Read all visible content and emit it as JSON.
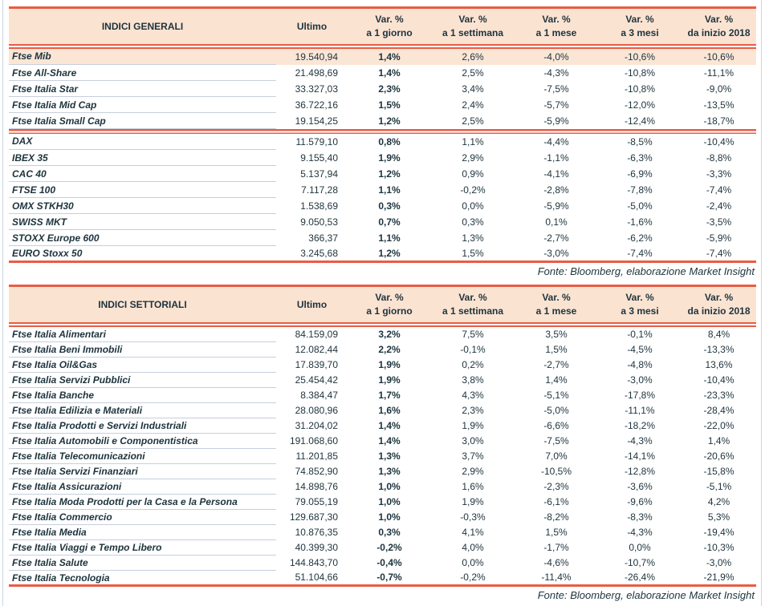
{
  "colors": {
    "accent_red": "#E95C44",
    "header_bg": "#FBE3D2",
    "highlight_row_bg": "#FBE6D6",
    "text_dark": "#1D333D",
    "row_divider": "#C6CFDC",
    "frame_border": "#C9D6E4"
  },
  "columns": {
    "ultimo": "Ultimo",
    "var": [
      {
        "top": "Var. %",
        "bottom": "a 1 giorno"
      },
      {
        "top": "Var. %",
        "bottom": "a 1 settimana"
      },
      {
        "top": "Var. %",
        "bottom": "a 1 mese"
      },
      {
        "top": "Var. %",
        "bottom": "a 3 mesi"
      },
      {
        "top": "Var. %",
        "bottom": "da inizio 2018"
      }
    ]
  },
  "tables": [
    {
      "title": "INDICI GENERALI",
      "source_note": "Fonte: Bloomberg, elaborazione Market Insight",
      "rows": [
        {
          "name": "Ftse Mib",
          "ultimo": "19.540,94",
          "values": [
            "1,4%",
            "2,6%",
            "-4,0%",
            "-10,6%",
            "-10,6%"
          ],
          "highlight": true
        },
        {
          "name": "Ftse All-Share",
          "ultimo": "21.498,69",
          "values": [
            "1,4%",
            "2,5%",
            "-4,3%",
            "-10,8%",
            "-11,1%"
          ]
        },
        {
          "name": "Ftse Italia Star",
          "ultimo": "33.327,03",
          "values": [
            "2,3%",
            "3,4%",
            "-7,5%",
            "-10,8%",
            "-9,0%"
          ]
        },
        {
          "name": "Ftse Italia Mid Cap",
          "ultimo": "36.722,16",
          "values": [
            "1,5%",
            "2,4%",
            "-5,7%",
            "-12,0%",
            "-13,5%"
          ]
        },
        {
          "name": "Ftse Italia Small Cap",
          "ultimo": "19.154,25",
          "values": [
            "1,2%",
            "2,5%",
            "-5,9%",
            "-12,4%",
            "-18,7%"
          ],
          "separator_after": true
        },
        {
          "name": "DAX",
          "ultimo": "11.579,10",
          "values": [
            "0,8%",
            "1,1%",
            "-4,4%",
            "-8,5%",
            "-10,4%"
          ]
        },
        {
          "name": "IBEX 35",
          "ultimo": "9.155,40",
          "values": [
            "1,9%",
            "2,9%",
            "-1,1%",
            "-6,3%",
            "-8,8%"
          ]
        },
        {
          "name": "CAC 40",
          "ultimo": "5.137,94",
          "values": [
            "1,2%",
            "0,9%",
            "-4,1%",
            "-6,9%",
            "-3,3%"
          ]
        },
        {
          "name": "FTSE 100",
          "ultimo": "7.117,28",
          "values": [
            "1,1%",
            "-0,2%",
            "-2,8%",
            "-7,8%",
            "-7,4%"
          ]
        },
        {
          "name": "OMX STKH30",
          "ultimo": "1.538,69",
          "values": [
            "0,3%",
            "0,0%",
            "-5,9%",
            "-5,0%",
            "-2,4%"
          ]
        },
        {
          "name": "SWISS MKT",
          "ultimo": "9.050,53",
          "values": [
            "0,7%",
            "0,3%",
            "0,1%",
            "-1,6%",
            "-3,5%"
          ]
        },
        {
          "name": "STOXX Europe 600",
          "ultimo": "366,37",
          "values": [
            "1,1%",
            "1,3%",
            "-2,7%",
            "-6,2%",
            "-5,9%"
          ]
        },
        {
          "name": "EURO Stoxx 50",
          "ultimo": "3.245,68",
          "values": [
            "1,2%",
            "1,5%",
            "-3,0%",
            "-7,4%",
            "-7,4%"
          ]
        }
      ]
    },
    {
      "title": "INDICI SETTORIALI",
      "source_note": "Fonte: Bloomberg, elaborazione Market Insight",
      "rows": [
        {
          "name": "Ftse Italia Alimentari",
          "ultimo": "84.159,09",
          "values": [
            "3,2%",
            "7,5%",
            "3,5%",
            "-0,1%",
            "8,4%"
          ]
        },
        {
          "name": "Ftse Italia Beni Immobili",
          "ultimo": "12.082,44",
          "values": [
            "2,2%",
            "-0,1%",
            "1,5%",
            "-4,5%",
            "-13,3%"
          ]
        },
        {
          "name": "Ftse Italia Oil&Gas",
          "ultimo": "17.839,70",
          "values": [
            "1,9%",
            "0,2%",
            "-2,7%",
            "-4,8%",
            "13,6%"
          ]
        },
        {
          "name": "Ftse Italia Servizi Pubblici",
          "ultimo": "25.454,42",
          "values": [
            "1,9%",
            "3,8%",
            "1,4%",
            "-3,0%",
            "-10,4%"
          ]
        },
        {
          "name": "Ftse Italia Banche",
          "ultimo": "8.384,47",
          "values": [
            "1,7%",
            "4,3%",
            "-5,1%",
            "-17,8%",
            "-23,3%"
          ]
        },
        {
          "name": "Ftse Italia Edilizia e Materiali",
          "ultimo": "28.080,96",
          "values": [
            "1,6%",
            "2,3%",
            "-5,0%",
            "-11,1%",
            "-28,4%"
          ]
        },
        {
          "name": "Ftse Italia Prodotti e Servizi Industriali",
          "ultimo": "31.204,02",
          "values": [
            "1,4%",
            "1,9%",
            "-6,6%",
            "-18,2%",
            "-22,0%"
          ]
        },
        {
          "name": "Ftse Italia Automobili e Componentistica",
          "ultimo": "191.068,60",
          "values": [
            "1,4%",
            "3,0%",
            "-7,5%",
            "-4,3%",
            "1,4%"
          ]
        },
        {
          "name": "Ftse Italia Telecomunicazioni",
          "ultimo": "11.201,85",
          "values": [
            "1,3%",
            "3,7%",
            "7,0%",
            "-14,1%",
            "-20,6%"
          ]
        },
        {
          "name": "Ftse Italia Servizi Finanziari",
          "ultimo": "74.852,90",
          "values": [
            "1,3%",
            "2,9%",
            "-10,5%",
            "-12,8%",
            "-15,8%"
          ]
        },
        {
          "name": "Ftse Italia Assicurazioni",
          "ultimo": "14.898,76",
          "values": [
            "1,0%",
            "1,6%",
            "-2,3%",
            "-3,6%",
            "-5,1%"
          ]
        },
        {
          "name": "Ftse Italia Moda Prodotti per la Casa e la Persona",
          "ultimo": "79.055,19",
          "values": [
            "1,0%",
            "1,9%",
            "-6,1%",
            "-9,6%",
            "4,2%"
          ]
        },
        {
          "name": "Ftse Italia Commercio",
          "ultimo": "129.687,30",
          "values": [
            "1,0%",
            "-0,3%",
            "-8,2%",
            "-8,3%",
            "5,3%"
          ]
        },
        {
          "name": "Ftse Italia Media",
          "ultimo": "10.876,35",
          "values": [
            "0,3%",
            "4,1%",
            "1,5%",
            "-4,3%",
            "-19,4%"
          ]
        },
        {
          "name": "Ftse Italia Viaggi e Tempo Libero",
          "ultimo": "40.399,30",
          "values": [
            "-0,2%",
            "4,0%",
            "-1,7%",
            "0,0%",
            "-10,3%"
          ]
        },
        {
          "name": "Ftse Italia Salute",
          "ultimo": "144.843,70",
          "values": [
            "-0,4%",
            "0,0%",
            "-4,6%",
            "-10,7%",
            "-3,0%"
          ]
        },
        {
          "name": "Ftse Italia Tecnologia",
          "ultimo": "51.104,66",
          "values": [
            "-0,7%",
            "-0,2%",
            "-11,4%",
            "-26,4%",
            "-21,9%"
          ]
        }
      ]
    }
  ]
}
